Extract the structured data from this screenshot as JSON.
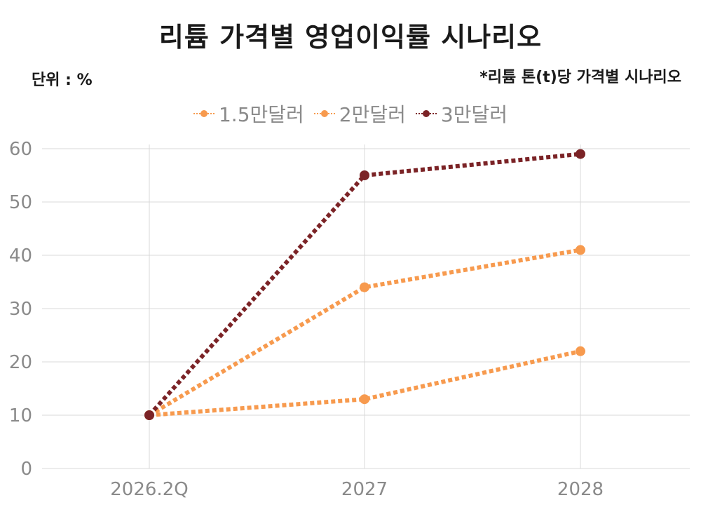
{
  "header": {
    "title": "리튬 가격별 영업이익률 시나리오",
    "unit": "단위 : %",
    "note": "*리튬 톤(t)당 가격별 시나리오"
  },
  "chart_data": {
    "type": "line",
    "title": "리튬 가격별 영업이익률 시나리오",
    "x": [
      "2026.2Q",
      "2027",
      "2028"
    ],
    "ylim": [
      0,
      60
    ],
    "yticks": [
      0,
      10,
      20,
      30,
      40,
      50,
      60
    ],
    "grid": true,
    "legend_position": "top-center",
    "series": [
      {
        "name": "1.5만달러",
        "values": [
          10,
          13,
          22
        ],
        "color": "#F79A4E"
      },
      {
        "name": "2만달러",
        "values": [
          10,
          34,
          41
        ],
        "color": "#F79A4E"
      },
      {
        "name": "3만달러",
        "values": [
          10,
          55,
          59
        ],
        "color": "#7B2326"
      }
    ]
  }
}
